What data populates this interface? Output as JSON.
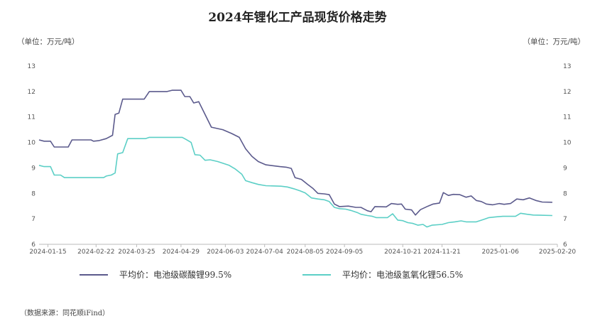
{
  "chart_data": {
    "type": "line",
    "title": "2024年锂化工产品现货价格走势",
    "unit_left": "（单位：万元/吨）",
    "unit_right": "（单位：万元/吨）",
    "ylim": [
      6,
      13
    ],
    "yticks": [
      6,
      7,
      8,
      9,
      10,
      11,
      12,
      13
    ],
    "x_range": [
      "2024-01-08",
      "2025-02-20"
    ],
    "x_ticks": [
      "2024-01-15",
      "2024-02-22",
      "2024-03-25",
      "2024-04-29",
      "2024-06-03",
      "2024-07-04",
      "2024-08-05",
      "2024-09-05",
      "2024-10-21",
      "2024-11-21",
      "2025-01-06",
      "2025-02-20"
    ],
    "grid": false,
    "legend_position": "bottom",
    "source": "（数据来源：同花顺iFind）",
    "series": [
      {
        "name": "平均价：电池级碳酸锂99.5%",
        "color": "#5b5a8c",
        "points": [
          [
            "2024-01-08",
            10.1
          ],
          [
            "2024-01-12",
            10.05
          ],
          [
            "2024-01-17",
            10.05
          ],
          [
            "2024-01-20",
            9.82
          ],
          [
            "2024-01-31",
            9.82
          ],
          [
            "2024-02-03",
            10.1
          ],
          [
            "2024-02-08",
            10.1
          ],
          [
            "2024-02-18",
            10.1
          ],
          [
            "2024-02-20",
            10.05
          ],
          [
            "2024-02-24",
            10.07
          ],
          [
            "2024-03-01",
            10.15
          ],
          [
            "2024-03-06",
            10.28
          ],
          [
            "2024-03-08",
            11.1
          ],
          [
            "2024-03-11",
            11.15
          ],
          [
            "2024-03-14",
            11.7
          ],
          [
            "2024-03-31",
            11.7
          ],
          [
            "2024-04-04",
            12.0
          ],
          [
            "2024-04-13",
            12.0
          ],
          [
            "2024-04-18",
            12.0
          ],
          [
            "2024-04-22",
            12.05
          ],
          [
            "2024-04-29",
            12.05
          ],
          [
            "2024-05-02",
            11.8
          ],
          [
            "2024-05-06",
            11.8
          ],
          [
            "2024-05-09",
            11.55
          ],
          [
            "2024-05-13",
            11.6
          ],
          [
            "2024-05-18",
            11.1
          ],
          [
            "2024-05-23",
            10.6
          ],
          [
            "2024-06-01",
            10.5
          ],
          [
            "2024-06-08",
            10.35
          ],
          [
            "2024-06-14",
            10.2
          ],
          [
            "2024-06-19",
            9.75
          ],
          [
            "2024-06-24",
            9.45
          ],
          [
            "2024-06-29",
            9.25
          ],
          [
            "2024-07-05",
            9.12
          ],
          [
            "2024-07-16",
            9.05
          ],
          [
            "2024-07-21",
            9.03
          ],
          [
            "2024-07-25",
            8.98
          ],
          [
            "2024-07-28",
            8.62
          ],
          [
            "2024-08-02",
            8.55
          ],
          [
            "2024-08-07",
            8.35
          ],
          [
            "2024-08-11",
            8.2
          ],
          [
            "2024-08-15",
            8.0
          ],
          [
            "2024-08-20",
            7.98
          ],
          [
            "2024-08-24",
            7.95
          ],
          [
            "2024-08-28",
            7.58
          ],
          [
            "2024-09-01",
            7.48
          ],
          [
            "2024-09-08",
            7.5
          ],
          [
            "2024-09-14",
            7.45
          ],
          [
            "2024-09-18",
            7.45
          ],
          [
            "2024-09-23",
            7.32
          ],
          [
            "2024-09-26",
            7.28
          ],
          [
            "2024-09-29",
            7.48
          ],
          [
            "2024-10-08",
            7.47
          ],
          [
            "2024-10-12",
            7.6
          ],
          [
            "2024-10-17",
            7.57
          ],
          [
            "2024-10-20",
            7.58
          ],
          [
            "2024-10-23",
            7.38
          ],
          [
            "2024-10-28",
            7.35
          ],
          [
            "2024-10-31",
            7.15
          ],
          [
            "2024-11-04",
            7.36
          ],
          [
            "2024-11-10",
            7.5
          ],
          [
            "2024-11-14",
            7.58
          ],
          [
            "2024-11-19",
            7.62
          ],
          [
            "2024-11-22",
            8.03
          ],
          [
            "2024-11-26",
            7.92
          ],
          [
            "2024-11-30",
            7.96
          ],
          [
            "2024-12-05",
            7.95
          ],
          [
            "2024-12-10",
            7.85
          ],
          [
            "2024-12-14",
            7.9
          ],
          [
            "2024-12-18",
            7.72
          ],
          [
            "2024-12-22",
            7.68
          ],
          [
            "2024-12-26",
            7.58
          ],
          [
            "2024-12-31",
            7.55
          ],
          [
            "2025-01-05",
            7.6
          ],
          [
            "2025-01-09",
            7.57
          ],
          [
            "2025-01-14",
            7.6
          ],
          [
            "2025-01-19",
            7.78
          ],
          [
            "2025-01-24",
            7.75
          ],
          [
            "2025-01-29",
            7.82
          ],
          [
            "2025-02-03",
            7.72
          ],
          [
            "2025-02-08",
            7.66
          ],
          [
            "2025-02-16",
            7.65
          ]
        ]
      },
      {
        "name": "平均价：电池级氢氧化锂56.5%",
        "color": "#5ccfc6",
        "points": [
          [
            "2024-01-08",
            9.1
          ],
          [
            "2024-01-12",
            9.05
          ],
          [
            "2024-01-17",
            9.05
          ],
          [
            "2024-01-20",
            8.72
          ],
          [
            "2024-01-25",
            8.72
          ],
          [
            "2024-01-28",
            8.62
          ],
          [
            "2024-02-28",
            8.62
          ],
          [
            "2024-03-01",
            8.68
          ],
          [
            "2024-03-05",
            8.72
          ],
          [
            "2024-03-08",
            8.8
          ],
          [
            "2024-03-10",
            9.55
          ],
          [
            "2024-03-14",
            9.6
          ],
          [
            "2024-03-18",
            10.15
          ],
          [
            "2024-04-01",
            10.15
          ],
          [
            "2024-04-04",
            10.2
          ],
          [
            "2024-04-30",
            10.2
          ],
          [
            "2024-05-03",
            10.12
          ],
          [
            "2024-05-07",
            10.0
          ],
          [
            "2024-05-10",
            9.52
          ],
          [
            "2024-05-14",
            9.5
          ],
          [
            "2024-05-18",
            9.3
          ],
          [
            "2024-05-22",
            9.32
          ],
          [
            "2024-05-28",
            9.25
          ],
          [
            "2024-06-06",
            9.1
          ],
          [
            "2024-06-11",
            8.95
          ],
          [
            "2024-06-16",
            8.75
          ],
          [
            "2024-06-19",
            8.5
          ],
          [
            "2024-06-24",
            8.42
          ],
          [
            "2024-06-29",
            8.35
          ],
          [
            "2024-07-05",
            8.3
          ],
          [
            "2024-07-17",
            8.28
          ],
          [
            "2024-07-22",
            8.25
          ],
          [
            "2024-07-27",
            8.18
          ],
          [
            "2024-08-01",
            8.1
          ],
          [
            "2024-08-05",
            8.02
          ],
          [
            "2024-08-10",
            7.82
          ],
          [
            "2024-08-15",
            7.78
          ],
          [
            "2024-08-20",
            7.75
          ],
          [
            "2024-08-24",
            7.68
          ],
          [
            "2024-08-28",
            7.45
          ],
          [
            "2024-09-01",
            7.4
          ],
          [
            "2024-09-06",
            7.38
          ],
          [
            "2024-09-10",
            7.33
          ],
          [
            "2024-09-15",
            7.25
          ],
          [
            "2024-09-18",
            7.18
          ],
          [
            "2024-09-23",
            7.13
          ],
          [
            "2024-09-27",
            7.1
          ],
          [
            "2024-09-30",
            7.05
          ],
          [
            "2024-10-09",
            7.05
          ],
          [
            "2024-10-13",
            7.2
          ],
          [
            "2024-10-17",
            6.95
          ],
          [
            "2024-10-21",
            6.93
          ],
          [
            "2024-10-25",
            6.85
          ],
          [
            "2024-10-29",
            6.82
          ],
          [
            "2024-11-02",
            6.75
          ],
          [
            "2024-11-06",
            6.78
          ],
          [
            "2024-11-09",
            6.68
          ],
          [
            "2024-11-13",
            6.75
          ],
          [
            "2024-11-21",
            6.78
          ],
          [
            "2024-11-26",
            6.85
          ],
          [
            "2024-12-01",
            6.88
          ],
          [
            "2024-12-06",
            6.92
          ],
          [
            "2024-12-10",
            6.88
          ],
          [
            "2024-12-18",
            6.88
          ],
          [
            "2024-12-24",
            6.98
          ],
          [
            "2024-12-28",
            7.05
          ],
          [
            "2025-01-03",
            7.08
          ],
          [
            "2025-01-08",
            7.1
          ],
          [
            "2025-01-18",
            7.1
          ],
          [
            "2025-01-22",
            7.22
          ],
          [
            "2025-01-27",
            7.18
          ],
          [
            "2025-02-01",
            7.15
          ],
          [
            "2025-02-16",
            7.13
          ]
        ]
      }
    ]
  }
}
